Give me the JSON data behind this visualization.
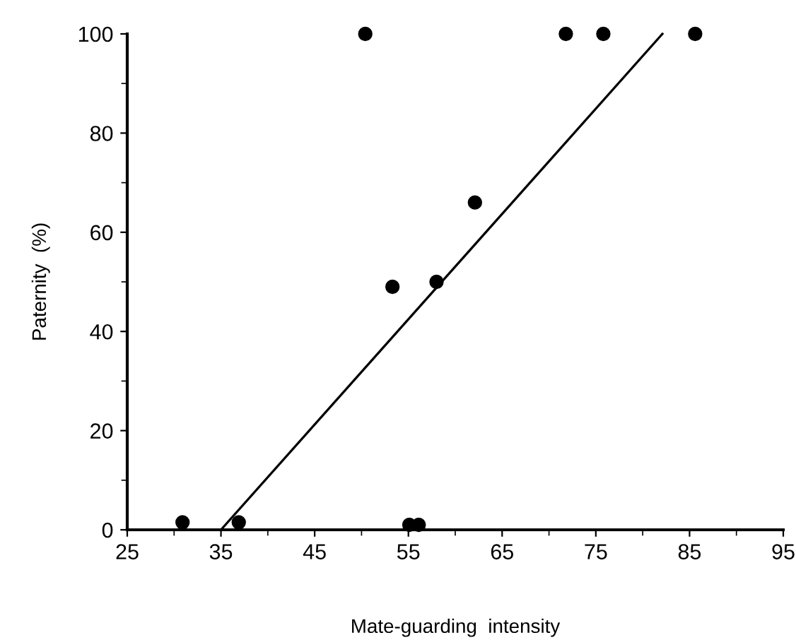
{
  "chart_data": {
    "type": "scatter",
    "xlabel": "Mate-guarding  intensity",
    "ylabel": "Paternity  (%)",
    "xlim": [
      25,
      95
    ],
    "ylim": [
      0,
      100
    ],
    "xticks": [
      25,
      35,
      45,
      55,
      65,
      75,
      85,
      95
    ],
    "yticks": [
      0,
      20,
      40,
      60,
      80,
      100
    ],
    "grid": false,
    "legend": false,
    "series": [
      {
        "color": "#000000",
        "marker": "circle",
        "x": [
          50.4,
          71.8,
          75.8,
          85.6,
          62.1,
          53.3,
          58.0,
          30.9,
          36.9,
          55.1,
          56.1
        ],
        "values": [
          100,
          100,
          100,
          100,
          66,
          49,
          50,
          1.5,
          1.5,
          1,
          1
        ]
      },
      {
        "type": "line",
        "color": "#000000",
        "marker": "none",
        "x": [
          35,
          82.1
        ],
        "values": [
          0,
          100
        ]
      }
    ]
  }
}
